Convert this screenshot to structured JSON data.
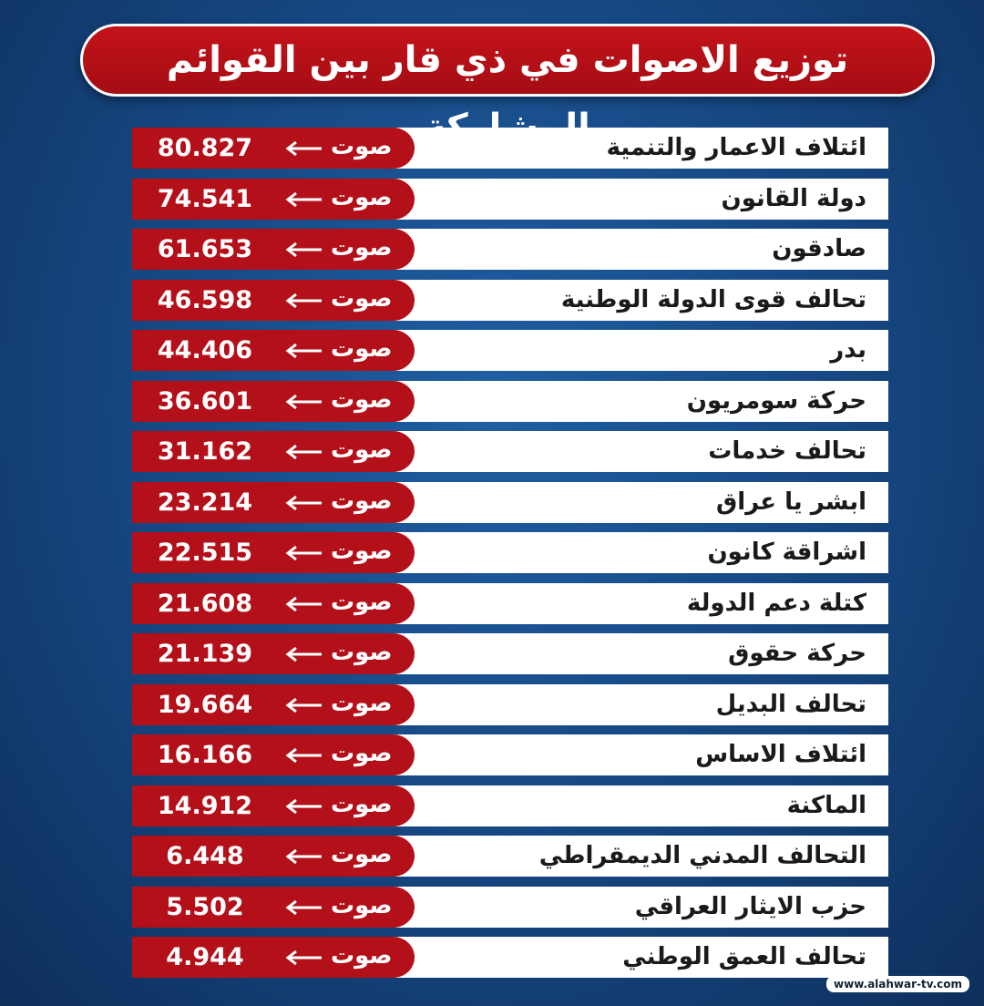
{
  "title": "توزيع الاصوات في ذي قار بين القوائم المشاركة",
  "table": {
    "rows": [
      {
        "name": "ائتلاف الاعمار والتنمية",
        "unit": "صوت",
        "votes": "80.827"
      },
      {
        "name": "دولة القانون",
        "unit": "صوت",
        "votes": "74.541"
      },
      {
        "name": "صادقون",
        "unit": "صوت",
        "votes": "61.653"
      },
      {
        "name": "تحالف قوى الدولة الوطنية",
        "unit": "صوت",
        "votes": "46.598"
      },
      {
        "name": "بدر",
        "unit": "صوت",
        "votes": "44.406"
      },
      {
        "name": "حركة سومريون",
        "unit": "صوت",
        "votes": "36.601"
      },
      {
        "name": "تحالف خدمات",
        "unit": "صوت",
        "votes": "31.162"
      },
      {
        "name": "ابشر يا عراق",
        "unit": "صوت",
        "votes": "23.214"
      },
      {
        "name": "اشراقة كانون",
        "unit": "صوت",
        "votes": "22.515"
      },
      {
        "name": "كتلة دعم الدولة",
        "unit": "صوت",
        "votes": "21.608"
      },
      {
        "name": "حركة حقوق",
        "unit": "صوت",
        "votes": "21.139"
      },
      {
        "name": "تحالف البديل",
        "unit": "صوت",
        "votes": "19.664"
      },
      {
        "name": "ائتلاف الاساس",
        "unit": "صوت",
        "votes": "16.166"
      },
      {
        "name": "الماكنة",
        "unit": "صوت",
        "votes": "14.912"
      },
      {
        "name": "التحالف المدني الديمقراطي",
        "unit": "صوت",
        "votes": "6.448"
      },
      {
        "name": "حزب الايثار العراقي",
        "unit": "صوت",
        "votes": "5.502"
      },
      {
        "name": "تحالف العمق الوطني",
        "unit": "صوت",
        "votes": "4.944"
      }
    ]
  },
  "watermark": "www.alahwar-tv.com"
}
